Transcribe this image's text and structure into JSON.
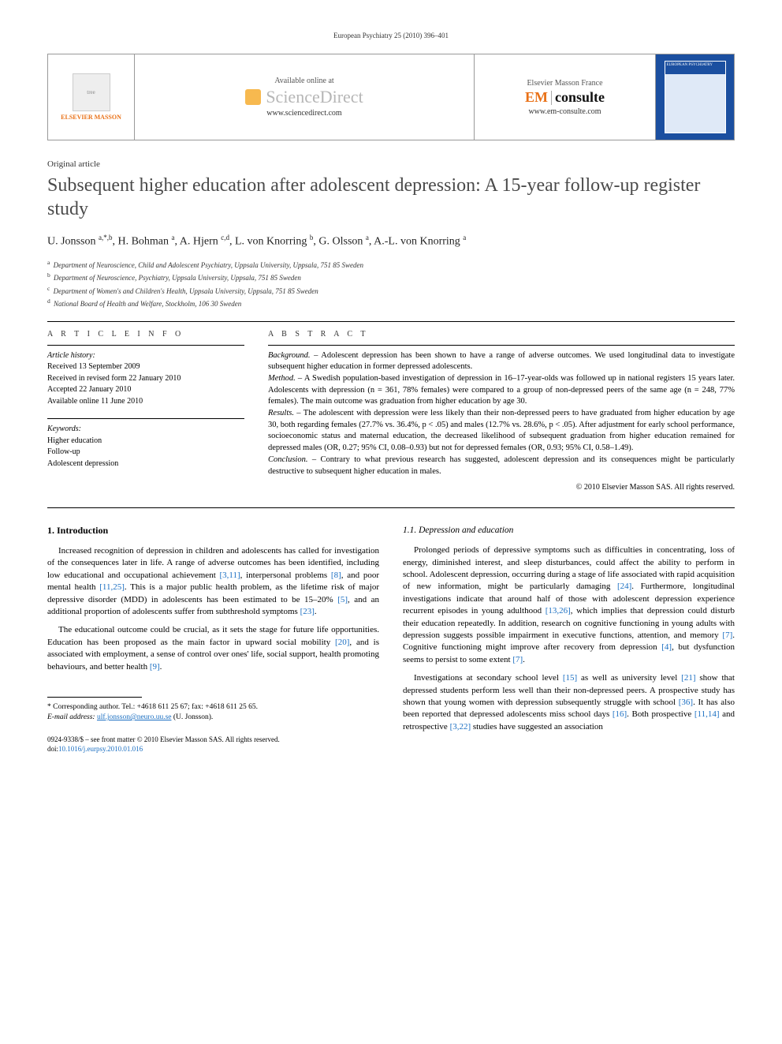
{
  "running_head": "European Psychiatry 25 (2010) 396–401",
  "banner": {
    "publisher_left": "ELSEVIER MASSON",
    "available_online": "Available online at",
    "sd_name": "ScienceDirect",
    "sd_url": "www.sciencedirect.com",
    "em_top": "Elsevier Masson France",
    "em_logo_left": "EM",
    "em_logo_right": "consulte",
    "em_url": "www.em-consulte.com",
    "cover_title": "EUROPEAN PSYCHIATRY"
  },
  "article_type": "Original article",
  "title": "Subsequent higher education after adolescent depression: A 15-year follow-up register study",
  "authors_html": "U. Jonsson <sup>a,*,b</sup>, H. Bohman <sup>a</sup>, A. Hjern <sup>c,d</sup>, L. von Knorring <sup>b</sup>, G. Olsson <sup>a</sup>, A.-L. von Knorring <sup>a</sup>",
  "affiliations": [
    {
      "key": "a",
      "text": "Department of Neuroscience, Child and Adolescent Psychiatry, Uppsala University, Uppsala, 751 85 Sweden"
    },
    {
      "key": "b",
      "text": "Department of Neuroscience, Psychiatry, Uppsala University, Uppsala, 751 85 Sweden"
    },
    {
      "key": "c",
      "text": "Department of Women's and Children's Health, Uppsala University, Uppsala, 751 85 Sweden"
    },
    {
      "key": "d",
      "text": "National Board of Health and Welfare, Stockholm, 106 30 Sweden"
    }
  ],
  "info": {
    "heading": "A R T I C L E   I N F O",
    "history_label": "Article history:",
    "history": [
      "Received 13 September 2009",
      "Received in revised form 22 January 2010",
      "Accepted 22 January 2010",
      "Available online 11 June 2010"
    ],
    "keywords_label": "Keywords:",
    "keywords": [
      "Higher education",
      "Follow-up",
      "Adolescent depression"
    ]
  },
  "abstract": {
    "heading": "A B S T R A C T",
    "background_label": "Background. –",
    "background": "Adolescent depression has been shown to have a range of adverse outcomes. We used longitudinal data to investigate subsequent higher education in former depressed adolescents.",
    "method_label": "Method. –",
    "method": "A Swedish population-based investigation of depression in 16–17-year-olds was followed up in national registers 15 years later. Adolescents with depression (n = 361, 78% females) were compared to a group of non-depressed peers of the same age (n = 248, 77% females). The main outcome was graduation from higher education by age 30.",
    "results_label": "Results. –",
    "results": "The adolescent with depression were less likely than their non-depressed peers to have graduated from higher education by age 30, both regarding females (27.7% vs. 36.4%, p < .05) and males (12.7% vs. 28.6%, p < .05). After adjustment for early school performance, socioeconomic status and maternal education, the decreased likelihood of subsequent graduation from higher education remained for depressed males (OR, 0.27; 95% CI, 0.08–0.93) but not for depressed females (OR, 0.93; 95% CI, 0.58–1.49).",
    "conclusion_label": "Conclusion. –",
    "conclusion": "Contrary to what previous research has suggested, adolescent depression and its consequences might be particularly destructive to subsequent higher education in males.",
    "copyright": "© 2010 Elsevier Masson SAS. All rights reserved."
  },
  "body": {
    "h1": "1. Introduction",
    "p1": "Increased recognition of depression in children and adolescents has called for investigation of the consequences later in life. A range of adverse outcomes has been identified, including low educational and occupational achievement [3,11], interpersonal problems [8], and poor mental health [11,25]. This is a major public health problem, as the lifetime risk of major depressive disorder (MDD) in adolescents has been estimated to be 15–20% [5], and an additional proportion of adolescents suffer from subthreshold symptoms [23].",
    "p2": "The educational outcome could be crucial, as it sets the stage for future life opportunities. Education has been proposed as the main factor in upward social mobility [20], and is associated with employment, a sense of control over ones' life, social support, health promoting behaviours, and better health [9].",
    "h2": "1.1. Depression and education",
    "p3": "Prolonged periods of depressive symptoms such as difficulties in concentrating, loss of energy, diminished interest, and sleep disturbances, could affect the ability to perform in school. Adolescent depression, occurring during a stage of life associated with rapid acquisition of new information, might be particularly damaging [24]. Furthermore, longitudinal investigations indicate that around half of those with adolescent depression experience recurrent episodes in young adulthood [13,26], which implies that depression could disturb their education repeatedly. In addition, research on cognitive functioning in young adults with depression suggests possible impairment in executive functions, attention, and memory [7]. Cognitive functioning might improve after recovery from depression [4], but dysfunction seems to persist to some extent [7].",
    "p4": "Investigations at secondary school level [15] as well as university level [21] show that depressed students perform less well than their non-depressed peers. A prospective study has shown that young women with depression subsequently struggle with school [36]. It has also been reported that depressed adolescents miss school days [16]. Both prospective [11,14] and retrospective [3,22] studies have suggested an association"
  },
  "footnote": {
    "corresp": "* Corresponding author. Tel.: +4618 611 25 67; fax: +4618 611 25 65.",
    "email_label": "E-mail address:",
    "email": "ulf.jonsson@neuro.uu.se",
    "email_who": "(U. Jonsson)."
  },
  "doi": {
    "line1": "0924-9338/$ – see front matter © 2010 Elsevier Masson SAS. All rights reserved.",
    "line2_prefix": "doi:",
    "line2": "10.1016/j.eurpsy.2010.01.016"
  },
  "colors": {
    "link": "#1b6fc2",
    "orange": "#e97117",
    "banner_blue": "#1b4fa0"
  }
}
